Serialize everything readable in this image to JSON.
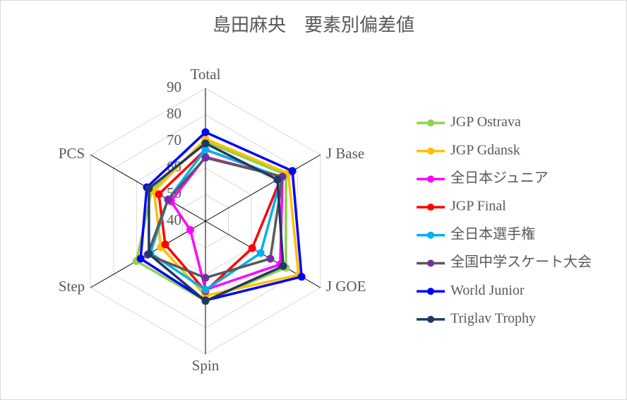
{
  "chart_data": {
    "type": "radar",
    "title": "島田麻央　要素別偏差値",
    "categories": [
      "Total",
      "J Base",
      "J GOE",
      "Spin",
      "Step",
      "PCS"
    ],
    "rlim": [
      40,
      90
    ],
    "rticks": [
      40,
      50,
      60,
      70,
      80,
      90
    ],
    "grid": true,
    "legend": "right",
    "series": [
      {
        "name": "JGP Ostrava",
        "color": "#92d050",
        "values": [
          70,
          75,
          75,
          70,
          70,
          63.4
        ]
      },
      {
        "name": "JGP Gdansk",
        "color": "#ffc000",
        "values": [
          71,
          76,
          80.5,
          68,
          59.4,
          62.4
        ]
      },
      {
        "name": "全日本ジュニア",
        "color": "#ff00ff",
        "values": [
          64.2,
          73.5,
          72.5,
          65.8,
          46.6,
          55
        ]
      },
      {
        "name": "JGP Final",
        "color": "#ff0000",
        "values": [
          66.9,
          73,
          60.3,
          66.3,
          57.5,
          60.3
        ]
      },
      {
        "name": "全日本選手権",
        "color": "#00b0f0",
        "values": [
          67,
          73,
          64,
          65.8,
          64,
          56.3
        ]
      },
      {
        "name": "全国中学スケート大会",
        "color": "#595959",
        "marker_color": "#7030a0",
        "values": [
          63.9,
          73.5,
          68.2,
          61.3,
          65.2,
          56.3
        ]
      },
      {
        "name": "World Junior",
        "color": "#0000ff",
        "values": [
          73.5,
          77.8,
          81.8,
          69.8,
          68.2,
          65.5
        ]
      },
      {
        "name": "Triglav Trophy",
        "color": "#203864",
        "values": [
          69.3,
          71.3,
          73.8,
          70,
          64.6,
          64.6
        ]
      }
    ]
  }
}
